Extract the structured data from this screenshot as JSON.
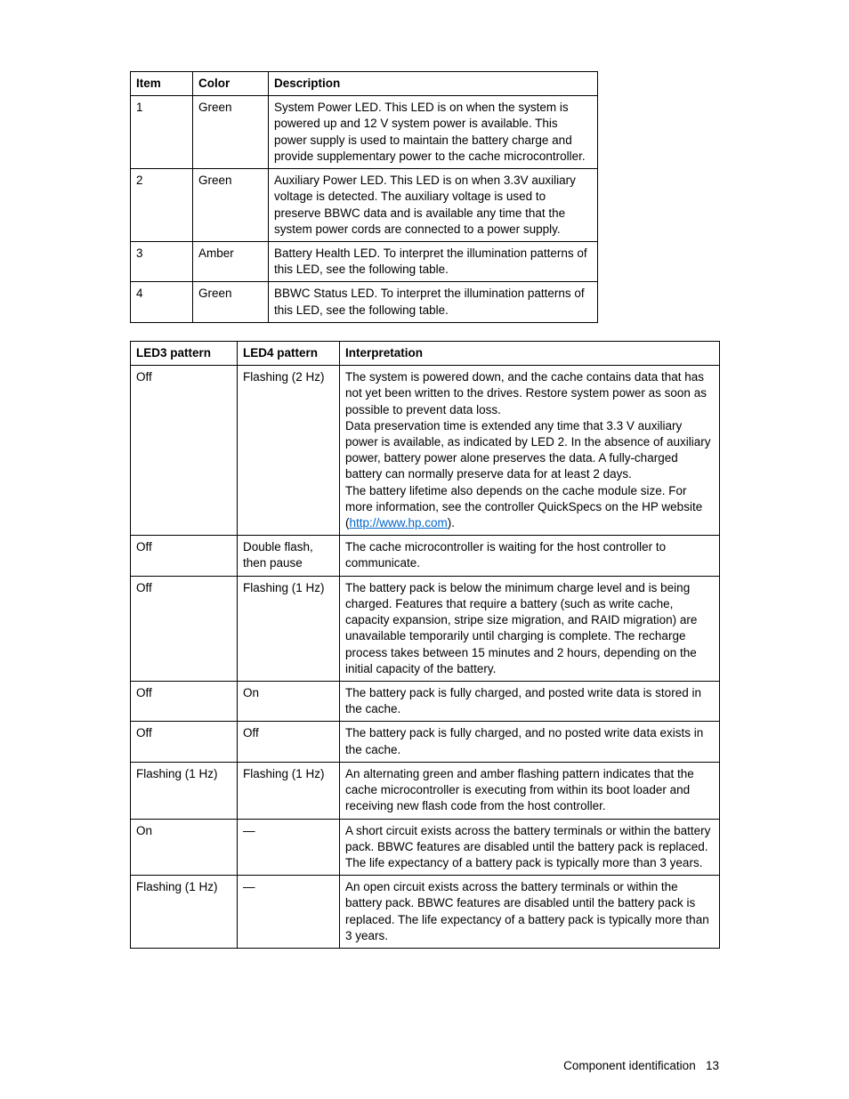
{
  "table1": {
    "headers": [
      "Item",
      "Color",
      "Description"
    ],
    "rows": [
      {
        "item": "1",
        "color": "Green",
        "desc": "System Power LED. This LED is on when the system is powered up and 12 V system power is available. This power supply is used to maintain the battery charge and provide supplementary power to the cache microcontroller."
      },
      {
        "item": "2",
        "color": "Green",
        "desc": "Auxiliary Power LED. This LED is on when 3.3V auxiliary voltage is detected. The auxiliary voltage is used to preserve BBWC data and is available any time that the system power cords are connected to a power supply."
      },
      {
        "item": "3",
        "color": "Amber",
        "desc": "Battery Health LED. To interpret the illumination patterns of this LED, see the following table."
      },
      {
        "item": "4",
        "color": "Green",
        "desc": "BBWC Status LED. To interpret the illumination patterns of this LED, see the following table."
      }
    ]
  },
  "table2": {
    "headers": [
      "LED3 pattern",
      "LED4 pattern",
      "Interpretation"
    ],
    "rows": [
      {
        "led3": "Off",
        "led4": "Flashing (2 Hz)",
        "interp_pre": "The system is powered down, and the cache contains data that has not yet been written to the drives. Restore system power as soon as possible to prevent data loss.\nData preservation time is extended any time that 3.3 V auxiliary power is available, as indicated by LED 2. In the absence of auxiliary power, battery power alone preserves the data. A fully-charged battery can normally preserve data for at least 2 days.\nThe battery lifetime also depends on the cache module size. For more information, see the controller QuickSpecs on the HP website (",
        "link_text": "http://www.hp.com",
        "interp_post": ")."
      },
      {
        "led3": "Off",
        "led4": "Double flash, then pause",
        "interp": "The cache microcontroller is waiting for the host controller to communicate."
      },
      {
        "led3": "Off",
        "led4": "Flashing (1 Hz)",
        "interp": "The battery pack is below the minimum charge level and is being charged. Features that require a battery (such as write cache, capacity expansion, stripe size migration, and RAID migration) are unavailable temporarily until charging is complete. The recharge process takes between 15 minutes and 2 hours, depending on the initial capacity of the battery."
      },
      {
        "led3": "Off",
        "led4": "On",
        "interp": "The battery pack is fully charged, and posted write data is stored in the cache."
      },
      {
        "led3": "Off",
        "led4": "Off",
        "interp": "The battery pack is fully charged, and no posted write data exists in the cache."
      },
      {
        "led3": "Flashing (1 Hz)",
        "led4": "Flashing (1 Hz)",
        "interp": "An alternating green and amber flashing pattern indicates that the cache microcontroller is executing from within its boot loader and receiving new flash code from the host controller."
      },
      {
        "led3": "On",
        "led4": "—",
        "interp": "A short circuit exists across the battery terminals or within the battery pack. BBWC features are disabled until the battery pack is replaced. The life expectancy of a battery pack is typically more than 3 years."
      },
      {
        "led3": "Flashing (1 Hz)",
        "led4": "—",
        "interp": "An open circuit exists across the battery terminals or within the battery pack. BBWC features are disabled until the battery pack is replaced. The life expectancy of a battery pack is typically more than 3 years."
      }
    ]
  },
  "footer": {
    "label": "Component identification",
    "page": "13"
  }
}
